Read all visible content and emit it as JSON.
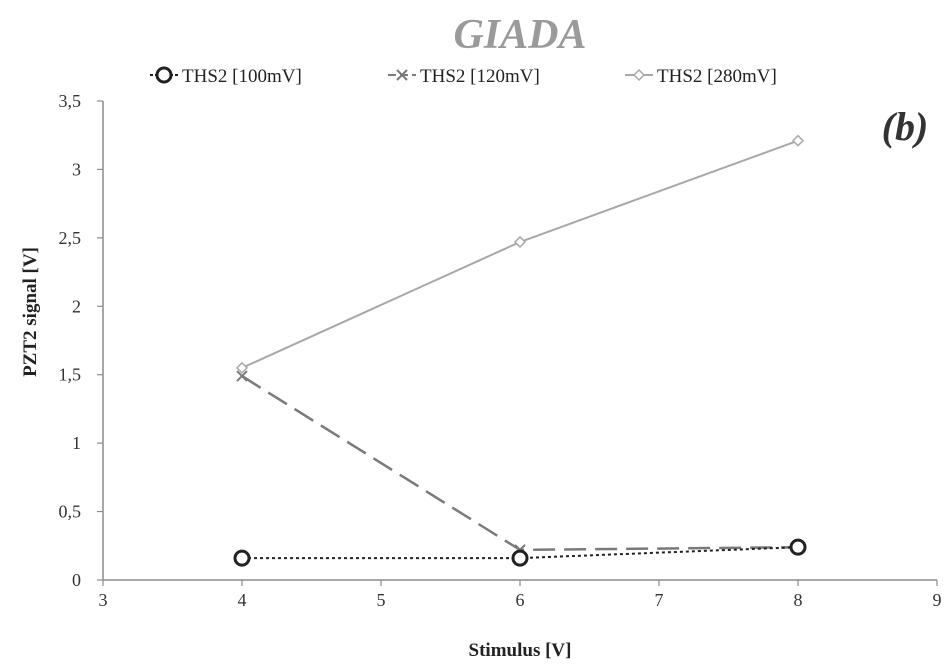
{
  "chart_data": {
    "type": "line",
    "title": "GIADA",
    "annotation": "(b)",
    "xlabel": "Stimulus [V]",
    "ylabel": "PZT2 signal [V]",
    "xlim": [
      3,
      9
    ],
    "ylim": [
      0,
      3.5
    ],
    "x_ticks": [
      "3",
      "4",
      "5",
      "6",
      "7",
      "8",
      "9"
    ],
    "y_ticks": [
      "0",
      "0,5",
      "1",
      "1,5",
      "2",
      "2,5",
      "3",
      "3,5"
    ],
    "grid": false,
    "legend_position": "top",
    "x": [
      4,
      6,
      8
    ],
    "series": [
      {
        "name": "THS2 [100mV]",
        "values": [
          0.16,
          0.16,
          0.24
        ],
        "color": "#222222",
        "marker": "circle",
        "dash": "dotted"
      },
      {
        "name": "THS2 [120mV]",
        "values": [
          1.49,
          0.22,
          0.24
        ],
        "color": "#7a7a7a",
        "marker": "x",
        "dash": "dashed"
      },
      {
        "name": "THS2 [280mV]",
        "values": [
          1.55,
          2.47,
          3.21
        ],
        "color": "#a8a8a8",
        "marker": "diamond",
        "dash": "solid"
      }
    ]
  }
}
